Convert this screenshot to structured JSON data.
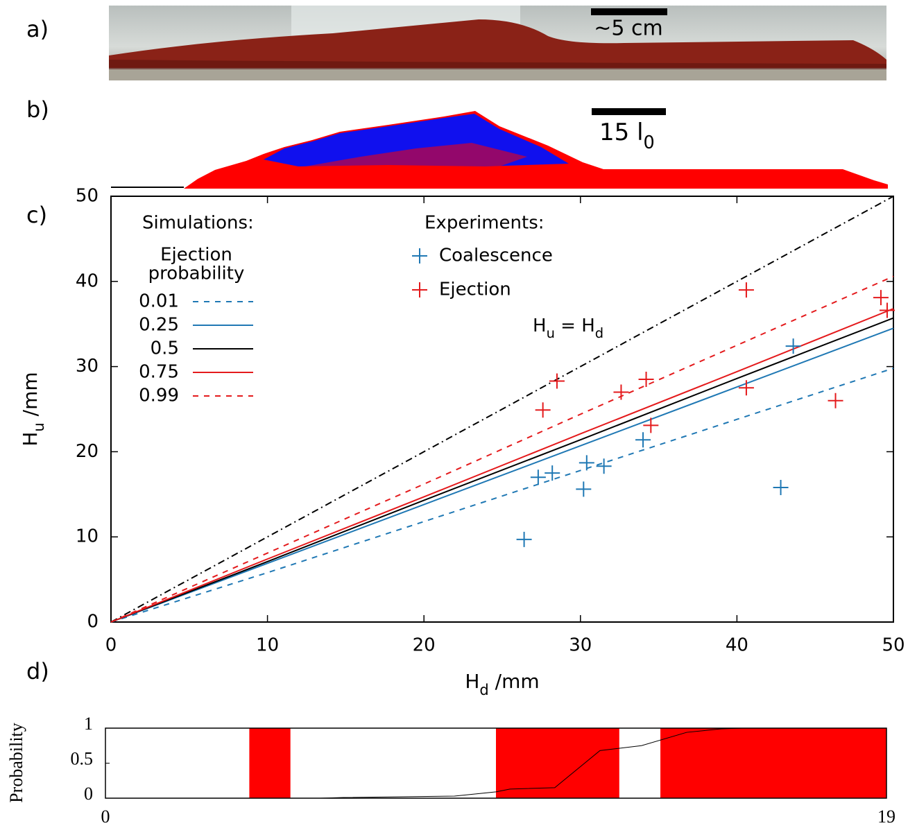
{
  "panels": {
    "labels": [
      "a)",
      "b)"
    ],
    "scale_bar_a": "~5 cm",
    "scale_bar_b": [
      {
        "text": "15 l"
      },
      {
        "text": "0",
        "sub": true
      }
    ]
  },
  "chart_data": [
    {
      "type": "line",
      "panel_label": "c)",
      "x_label": [
        {
          "text": "H"
        },
        {
          "text": "d",
          "sub": true
        },
        {
          "text": " /mm"
        }
      ],
      "y_label": [
        {
          "text": "H"
        },
        {
          "text": "u",
          "sub": true
        },
        {
          "text": " /mm"
        }
      ],
      "xlim": [
        0,
        50
      ],
      "ylim": [
        0,
        50
      ],
      "xticks": [
        0,
        10,
        20,
        30,
        40,
        50
      ],
      "yticks": [
        0,
        10,
        20,
        30,
        40,
        50
      ],
      "legend_sim_heading": "Simulations:",
      "legend_sim_title": [
        "Ejection",
        "probability"
      ],
      "legend_exp_heading": "Experiments:",
      "reference_line": {
        "x": [
          0,
          50
        ],
        "values": [
          0,
          50
        ],
        "color": "#000000",
        "style": "dashdot",
        "label": [
          {
            "text": "H"
          },
          {
            "text": "u",
            "sub": true
          },
          {
            "text": " = H"
          },
          {
            "text": "d",
            "sub": true
          }
        ]
      },
      "series": [
        {
          "name": "0.01",
          "color": "#1f78b4",
          "style": "dashed",
          "x": [
            0,
            10,
            20,
            30,
            40,
            50
          ],
          "values": [
            0,
            5.8,
            11.8,
            17.8,
            23.8,
            29.8
          ]
        },
        {
          "name": "0.25",
          "color": "#1f78b4",
          "style": "solid",
          "x": [
            0,
            10,
            20,
            30,
            40,
            50
          ],
          "values": [
            0,
            6.9,
            13.8,
            20.7,
            27.6,
            34.5
          ]
        },
        {
          "name": "0.5",
          "color": "#000000",
          "style": "solid",
          "x": [
            0,
            10,
            20,
            30,
            40,
            50
          ],
          "values": [
            0,
            7.1,
            14.3,
            21.4,
            28.6,
            35.7
          ]
        },
        {
          "name": "0.75",
          "color": "#e41a1c",
          "style": "solid",
          "x": [
            0,
            10,
            20,
            30,
            40,
            50
          ],
          "values": [
            0,
            7.4,
            14.7,
            22.1,
            29.4,
            36.8
          ]
        },
        {
          "name": "0.99",
          "color": "#e41a1c",
          "style": "dashed",
          "x": [
            0,
            10,
            20,
            30,
            40,
            50
          ],
          "values": [
            0,
            8.1,
            16.2,
            24.4,
            32.5,
            40.6
          ]
        },
        {
          "name": "Coalescence",
          "color": "#1f78b4",
          "style": "markers",
          "x": [
            26.4,
            27.3,
            28.2,
            30.2,
            30.4,
            31.5,
            34.0,
            42.8,
            43.6
          ],
          "values": [
            9.7,
            17.0,
            17.5,
            15.6,
            18.7,
            18.3,
            21.4,
            15.8,
            32.4
          ]
        },
        {
          "name": "Ejection",
          "color": "#e41a1c",
          "style": "markers",
          "x": [
            27.6,
            28.5,
            32.6,
            34.2,
            34.5,
            40.6,
            40.6,
            46.3,
            49.2,
            49.6
          ],
          "values": [
            24.9,
            28.3,
            27.0,
            28.5,
            23.1,
            39.0,
            27.5,
            26.0,
            38.1,
            36.6
          ]
        }
      ]
    },
    {
      "type": "line",
      "panel_label": "d)",
      "y_label": "Probability",
      "xlim": [
        0,
        19
      ],
      "ylim": [
        0,
        1
      ],
      "xticks": [
        0,
        19
      ],
      "yticks": [
        0,
        0.5,
        1
      ],
      "bands": [
        [
          3.5,
          4.5
        ],
        [
          9.5,
          12.5
        ],
        [
          13.5,
          19
        ]
      ],
      "band_color": "#ff0000",
      "series": [
        {
          "color": "#000000",
          "x": [
            5.23,
            5.79,
            8.49,
            9.5,
            9.84,
            10.93,
            12.03,
            13.04,
            14.14,
            14.98,
            15.49
          ],
          "values": [
            0,
            0.01,
            0.03,
            0.09,
            0.13,
            0.15,
            0.68,
            0.75,
            0.94,
            0.99,
            1.0
          ]
        }
      ]
    }
  ]
}
